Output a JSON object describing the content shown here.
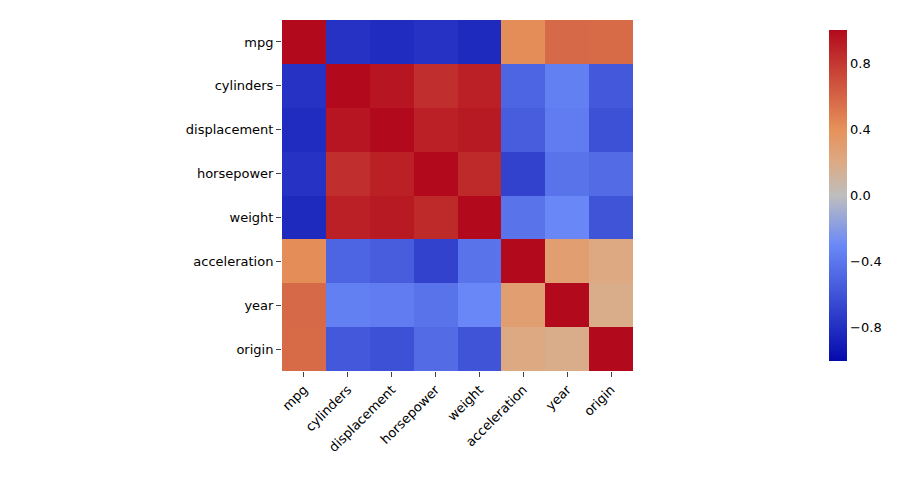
{
  "chart_data": {
    "type": "heatmap",
    "categories": [
      "mpg",
      "cylinders",
      "displacement",
      "horsepower",
      "weight",
      "acceleration",
      "year",
      "origin"
    ],
    "values": [
      [
        1.0,
        -0.78,
        -0.81,
        -0.78,
        -0.83,
        0.42,
        0.58,
        0.57
      ],
      [
        -0.78,
        1.0,
        0.95,
        0.84,
        0.9,
        -0.5,
        -0.35,
        -0.57
      ],
      [
        -0.81,
        0.95,
        1.0,
        0.9,
        0.93,
        -0.54,
        -0.37,
        -0.61
      ],
      [
        -0.78,
        0.84,
        0.9,
        1.0,
        0.86,
        -0.69,
        -0.42,
        -0.46
      ],
      [
        -0.83,
        0.9,
        0.93,
        0.86,
        1.0,
        -0.42,
        -0.31,
        -0.59
      ],
      [
        0.42,
        -0.5,
        -0.54,
        -0.69,
        -0.42,
        1.0,
        0.29,
        0.21
      ],
      [
        0.58,
        -0.35,
        -0.37,
        -0.42,
        -0.31,
        0.29,
        1.0,
        0.18
      ],
      [
        0.57,
        -0.57,
        -0.61,
        -0.46,
        -0.59,
        0.21,
        0.18,
        1.0
      ]
    ],
    "color": "RdBu",
    "colorbar_range": [
      -1.0,
      1.0
    ],
    "colorbar_ticks": [
      0.8,
      0.4,
      {
        "value": 0.0,
        "label": "0.0"
      },
      {
        "value": -0.4,
        "label": "−0.4"
      },
      {
        "value": -0.8,
        "label": "−0.8"
      }
    ],
    "grid": false
  }
}
